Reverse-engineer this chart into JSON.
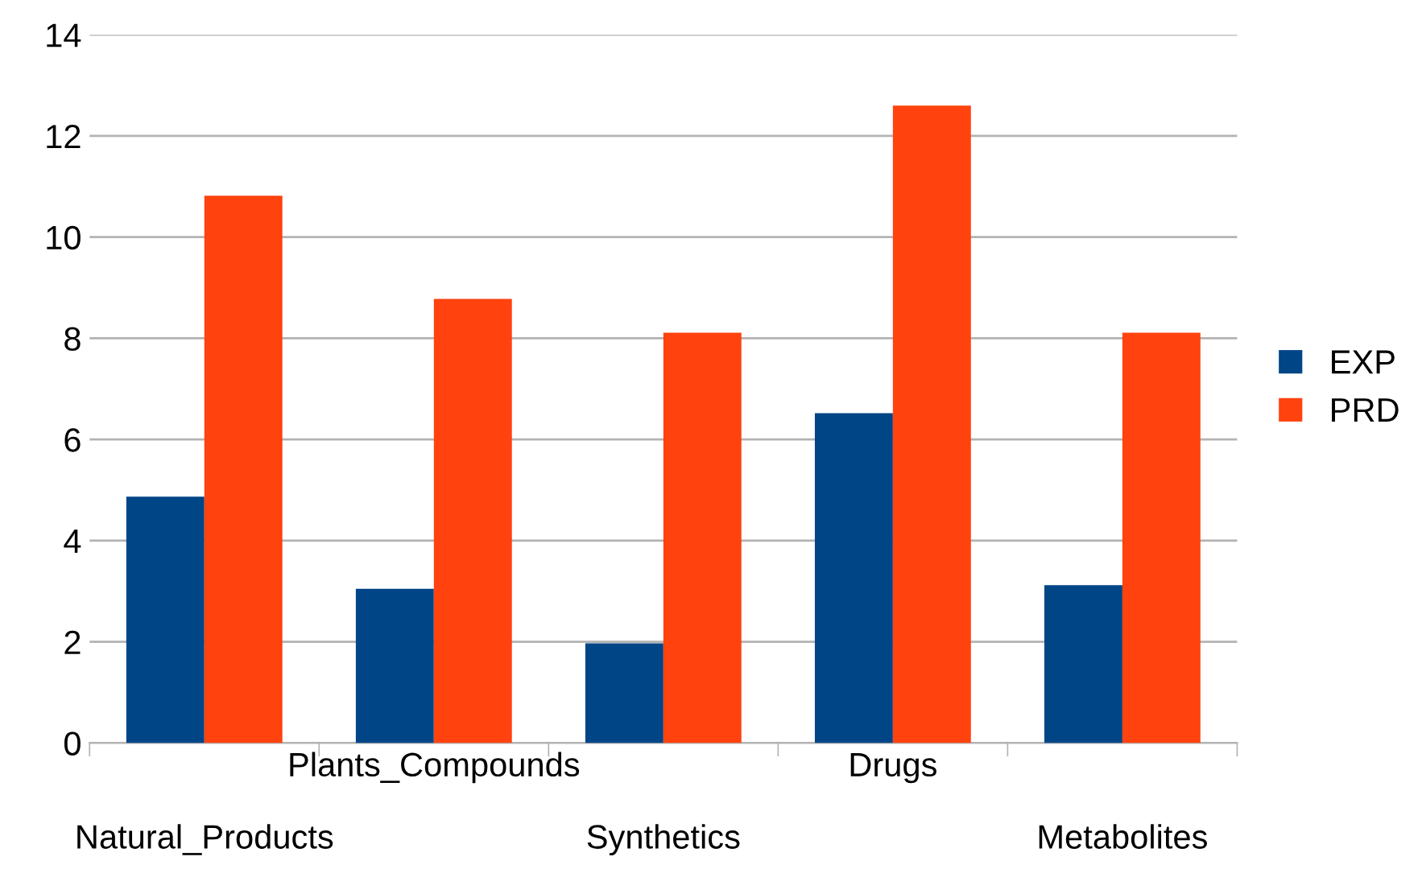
{
  "chart_data": {
    "type": "bar",
    "categories": [
      "Natural_Products",
      "Plants_Compounds",
      "Synthetics",
      "Drugs",
      "Metabolites"
    ],
    "series": [
      {
        "name": "EXP",
        "color": "#004586",
        "values": [
          4.87,
          3.05,
          1.97,
          6.52,
          3.12
        ]
      },
      {
        "name": "PRD",
        "color": "#ff420e",
        "values": [
          10.82,
          8.78,
          8.11,
          12.6,
          8.11
        ]
      }
    ],
    "ylim": [
      0,
      14
    ],
    "yticks": [
      0,
      2,
      4,
      6,
      8,
      10,
      12,
      14
    ],
    "grid": "y",
    "legend": "right"
  }
}
